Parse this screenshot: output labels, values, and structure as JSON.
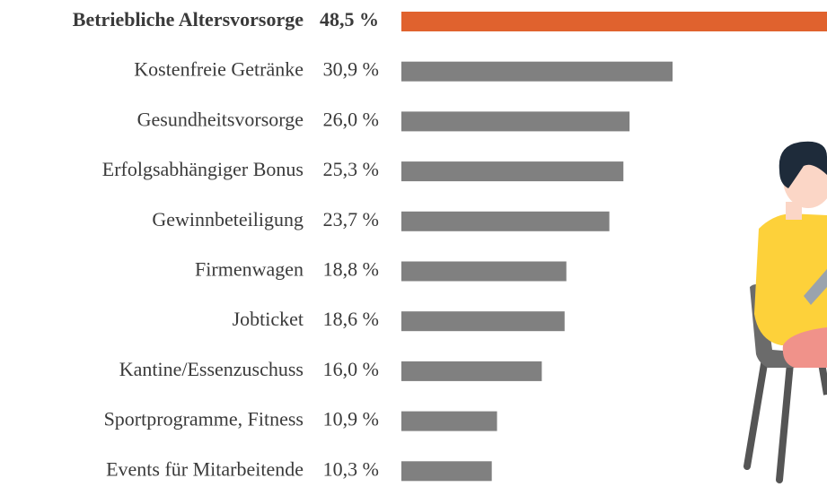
{
  "chart_data": {
    "type": "hbar",
    "categories": [
      "Betriebliche Altersvorsorge",
      "Kostenfreie Getränke",
      "Gesundheitsvorsorge",
      "Erfolgsabhängiger Bonus",
      "Gewinnbeteiligung",
      "Firmenwagen",
      "Jobticket",
      "Kantine/Essenzuschuss",
      "Sportprogramme, Fitness",
      "Events für Mitarbeitende"
    ],
    "values": [
      48.5,
      30.9,
      26.0,
      25.3,
      23.7,
      18.8,
      18.6,
      16.0,
      10.9,
      10.3
    ],
    "value_labels": [
      "48,5 %",
      "30,9 %",
      "26,0 %",
      "25,3 %",
      "23,7 %",
      "18,8 %",
      "18,6 %",
      "16,0 %",
      "10,9 %",
      "10,3 %"
    ],
    "colors": [
      "#e0622e",
      "#808080",
      "#808080",
      "#808080",
      "#808080",
      "#808080",
      "#808080",
      "#808080",
      "#808080",
      "#808080"
    ]
  }
}
